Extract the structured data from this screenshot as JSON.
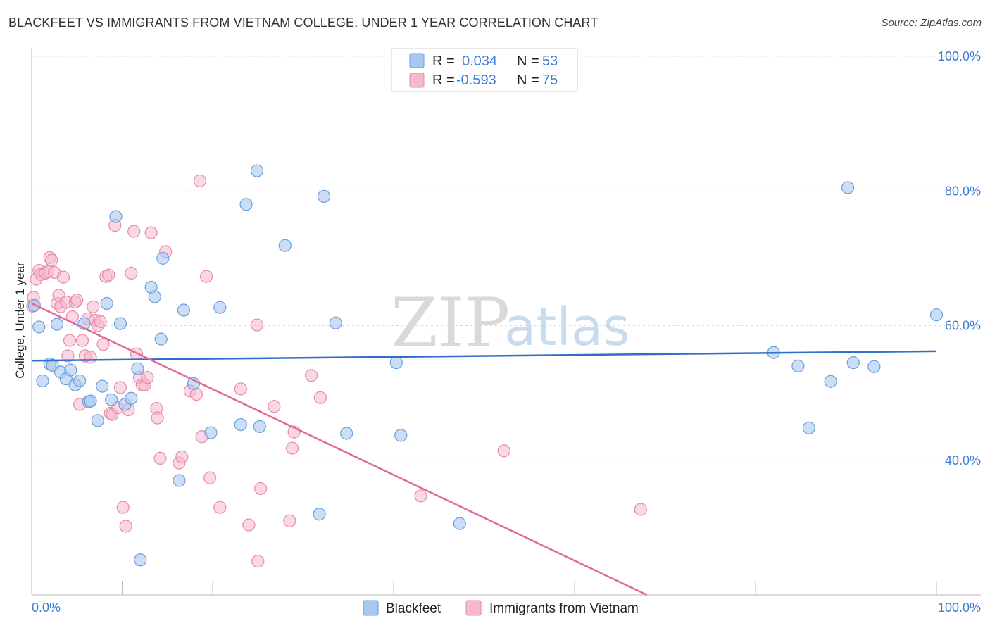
{
  "header": {
    "title": "BLACKFEET VS IMMIGRANTS FROM VIETNAM COLLEGE, UNDER 1 YEAR CORRELATION CHART",
    "source": "Source: ZipAtlas.com"
  },
  "watermark": {
    "zip": "ZIP",
    "atlas": "atlas"
  },
  "colors": {
    "blackfeet_fill": "#a9c8ef",
    "blackfeet_stroke": "#6a9fdc",
    "blackfeet_line": "#2f6fcc",
    "vietnam_fill": "#f5b8cc",
    "vietnam_stroke": "#e88aa8",
    "vietnam_line": "#e06a94",
    "accent_text": "#3d7dd8"
  },
  "legend_top": {
    "rows": [
      {
        "r_label": "R =",
        "r_value": "0.034",
        "n_label": "N =",
        "n_value": "53"
      },
      {
        "r_label": "R =",
        "r_value": "-0.593",
        "n_label": "N =",
        "n_value": "75"
      }
    ]
  },
  "legend_bottom": {
    "series1": "Blackfeet",
    "series2": "Immigrants from Vietnam"
  },
  "chart_data": {
    "type": "scatter",
    "title": "BLACKFEET VS IMMIGRANTS FROM VIETNAM COLLEGE, UNDER 1 YEAR CORRELATION CHART",
    "xlabel": "",
    "ylabel": "College, Under 1 year",
    "xlim": [
      0,
      100
    ],
    "ylim": [
      20,
      100
    ],
    "x_tick_labels": [
      "0.0%",
      "100.0%"
    ],
    "y_ticks": [
      40,
      60,
      80,
      100
    ],
    "y_tick_labels": [
      "40.0%",
      "60.0%",
      "80.0%",
      "100.0%"
    ],
    "grid": true,
    "legend_placement": "top-center",
    "series": [
      {
        "name": "Blackfeet",
        "r": 0.034,
        "n": 53,
        "trend": {
          "x": [
            0,
            100
          ],
          "y": [
            54.8,
            56.2
          ]
        },
        "points": [
          [
            0.3,
            63.0
          ],
          [
            0.8,
            59.8
          ],
          [
            1.2,
            51.8
          ],
          [
            2.0,
            54.3
          ],
          [
            2.3,
            54.1
          ],
          [
            2.8,
            60.2
          ],
          [
            3.2,
            53.1
          ],
          [
            3.8,
            52.1
          ],
          [
            4.3,
            53.4
          ],
          [
            4.8,
            51.2
          ],
          [
            5.3,
            51.8
          ],
          [
            5.8,
            60.3
          ],
          [
            6.3,
            48.7
          ],
          [
            6.5,
            48.8
          ],
          [
            7.3,
            45.9
          ],
          [
            7.8,
            51.0
          ],
          [
            8.3,
            63.3
          ],
          [
            8.8,
            49.0
          ],
          [
            9.3,
            76.2
          ],
          [
            9.8,
            60.3
          ],
          [
            10.3,
            48.3
          ],
          [
            11.0,
            49.2
          ],
          [
            11.7,
            53.6
          ],
          [
            12.0,
            25.2
          ],
          [
            13.2,
            65.7
          ],
          [
            13.6,
            64.3
          ],
          [
            14.3,
            58.0
          ],
          [
            14.5,
            70.0
          ],
          [
            16.3,
            37.0
          ],
          [
            16.8,
            62.3
          ],
          [
            17.9,
            51.4
          ],
          [
            19.8,
            44.1
          ],
          [
            20.8,
            62.7
          ],
          [
            23.1,
            45.3
          ],
          [
            23.7,
            78.0
          ],
          [
            24.9,
            83.0
          ],
          [
            25.2,
            45.0
          ],
          [
            28.0,
            71.9
          ],
          [
            31.8,
            32.0
          ],
          [
            32.3,
            79.2
          ],
          [
            33.6,
            60.4
          ],
          [
            34.8,
            44.0
          ],
          [
            40.3,
            54.5
          ],
          [
            40.8,
            43.7
          ],
          [
            47.3,
            30.6
          ],
          [
            82.0,
            56.0
          ],
          [
            84.7,
            54.0
          ],
          [
            85.9,
            44.8
          ],
          [
            88.3,
            51.7
          ],
          [
            90.2,
            80.5
          ],
          [
            90.8,
            54.5
          ],
          [
            93.1,
            53.9
          ],
          [
            100.0,
            61.6
          ]
        ]
      },
      {
        "name": "Immigrants from Vietnam",
        "r": -0.593,
        "n": 75,
        "trend": {
          "x": [
            0,
            68.0
          ],
          "y": [
            63.3,
            20.0
          ]
        },
        "points": [
          [
            0.2,
            64.2
          ],
          [
            0.5,
            66.9
          ],
          [
            0.8,
            68.2
          ],
          [
            1.0,
            67.6
          ],
          [
            1.5,
            67.8
          ],
          [
            1.8,
            68.0
          ],
          [
            2.0,
            70.1
          ],
          [
            2.2,
            69.7
          ],
          [
            2.5,
            67.9
          ],
          [
            2.8,
            63.3
          ],
          [
            3.0,
            64.5
          ],
          [
            3.2,
            62.8
          ],
          [
            3.5,
            67.2
          ],
          [
            3.8,
            63.5
          ],
          [
            4.0,
            55.5
          ],
          [
            4.2,
            57.8
          ],
          [
            4.5,
            61.3
          ],
          [
            4.8,
            63.5
          ],
          [
            5.0,
            63.8
          ],
          [
            5.3,
            48.3
          ],
          [
            5.6,
            57.8
          ],
          [
            5.9,
            55.5
          ],
          [
            6.2,
            61.0
          ],
          [
            6.5,
            55.3
          ],
          [
            6.8,
            62.8
          ],
          [
            7.0,
            60.8
          ],
          [
            7.3,
            60.0
          ],
          [
            7.6,
            60.6
          ],
          [
            7.9,
            57.2
          ],
          [
            8.2,
            67.3
          ],
          [
            8.5,
            67.5
          ],
          [
            8.7,
            47.0
          ],
          [
            8.9,
            46.8
          ],
          [
            9.2,
            74.9
          ],
          [
            9.5,
            47.8
          ],
          [
            9.8,
            50.8
          ],
          [
            10.1,
            33.0
          ],
          [
            10.4,
            30.2
          ],
          [
            10.7,
            47.5
          ],
          [
            11.0,
            67.8
          ],
          [
            11.3,
            74.0
          ],
          [
            11.6,
            55.8
          ],
          [
            11.9,
            52.3
          ],
          [
            12.2,
            51.2
          ],
          [
            12.5,
            51.2
          ],
          [
            12.8,
            52.3
          ],
          [
            13.2,
            73.8
          ],
          [
            13.8,
            47.7
          ],
          [
            13.9,
            46.3
          ],
          [
            14.2,
            40.3
          ],
          [
            14.8,
            71.0
          ],
          [
            16.3,
            39.6
          ],
          [
            16.6,
            40.5
          ],
          [
            17.5,
            50.3
          ],
          [
            18.2,
            49.8
          ],
          [
            18.6,
            81.5
          ],
          [
            18.8,
            43.5
          ],
          [
            19.3,
            67.3
          ],
          [
            19.7,
            37.4
          ],
          [
            20.8,
            33.0
          ],
          [
            23.1,
            50.6
          ],
          [
            24.0,
            30.4
          ],
          [
            24.9,
            60.1
          ],
          [
            25.0,
            25.0
          ],
          [
            25.3,
            35.8
          ],
          [
            26.8,
            48.0
          ],
          [
            28.5,
            31.0
          ],
          [
            28.8,
            41.8
          ],
          [
            29.0,
            44.2
          ],
          [
            30.9,
            52.6
          ],
          [
            31.9,
            49.3
          ],
          [
            43.0,
            34.7
          ],
          [
            52.2,
            41.4
          ],
          [
            67.3,
            32.7
          ],
          [
            0.1,
            62.9
          ]
        ]
      }
    ]
  }
}
